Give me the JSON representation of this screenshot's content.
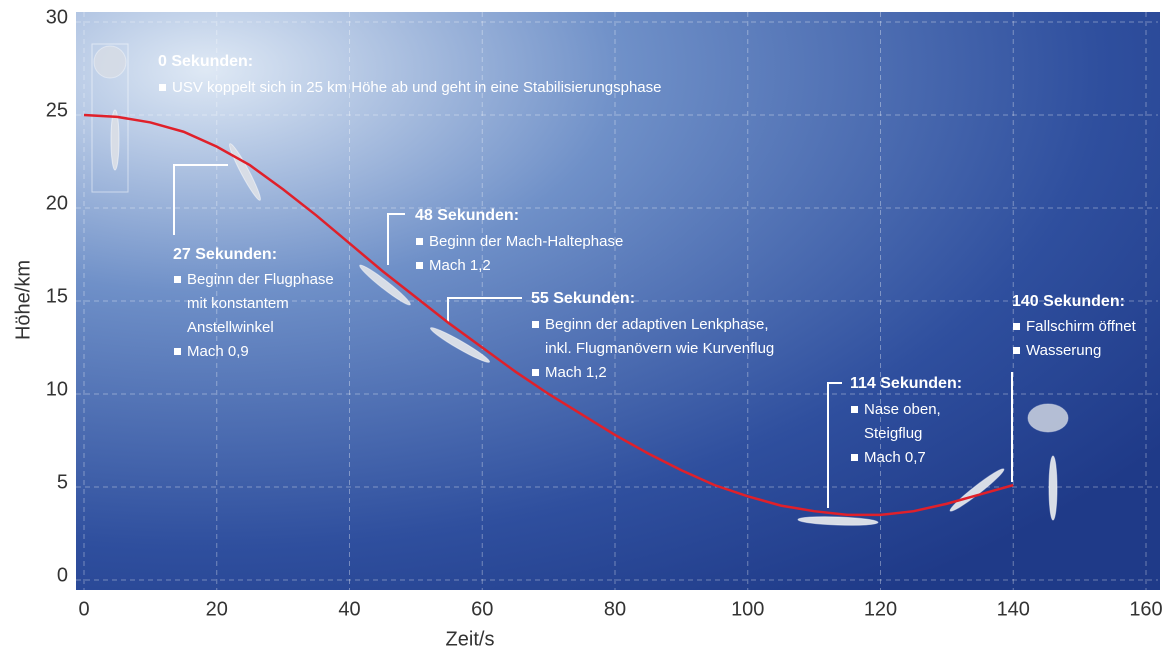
{
  "chart_data": {
    "type": "line",
    "x_label": "Zeit/s",
    "y_label": "Höhe/km",
    "x": [
      0,
      5,
      10,
      15,
      20,
      25,
      30,
      35,
      40,
      45,
      50,
      55,
      60,
      65,
      70,
      75,
      80,
      85,
      90,
      95,
      100,
      105,
      110,
      115,
      120,
      125,
      130,
      135,
      140
    ],
    "values": [
      25,
      24.9,
      24.6,
      24.1,
      23.3,
      22.3,
      21,
      19.6,
      18.1,
      16.6,
      15.2,
      13.8,
      12.5,
      11.2,
      10,
      8.9,
      7.8,
      6.8,
      5.9,
      5.1,
      4.5,
      4,
      3.7,
      3.5,
      3.5,
      3.7,
      4.1,
      4.6,
      5.1
    ],
    "color": "#e0202a",
    "xlim": [
      0,
      160
    ],
    "xticks": [
      0,
      20,
      40,
      60,
      80,
      100,
      120,
      140,
      160
    ],
    "ylim": [
      0,
      30
    ],
    "yticks": [
      0,
      5,
      10,
      15,
      20,
      25,
      30
    ],
    "grid": true,
    "annotations": [
      {
        "title": "0 Sekunden:",
        "items": [
          [
            "USV koppelt sich in 25 km Höhe ab und geht in eine Stabilisierungsphase"
          ]
        ]
      },
      {
        "title": "27 Sekunden:",
        "items": [
          [
            "Beginn der Flugphase",
            "mit konstantem",
            "Anstellwinkel"
          ],
          [
            "Mach 0,9"
          ]
        ]
      },
      {
        "title": "48 Sekunden:",
        "items": [
          [
            "Beginn der Mach-Haltephase"
          ],
          [
            "Mach 1,2"
          ]
        ]
      },
      {
        "title": "55 Sekunden:",
        "items": [
          [
            "Beginn der adaptiven Lenkphase,",
            "inkl. Flugmanövern wie Kurvenflug"
          ],
          [
            "Mach 1,2"
          ]
        ]
      },
      {
        "title": "114 Sekunden:",
        "items": [
          [
            "Nase oben,",
            "Steigflug"
          ],
          [
            "Mach 0,7"
          ]
        ]
      },
      {
        "title": "140 Sekunden:",
        "items": [
          [
            "Fallschirm öffnet"
          ],
          [
            "Wasserung"
          ]
        ]
      }
    ]
  }
}
